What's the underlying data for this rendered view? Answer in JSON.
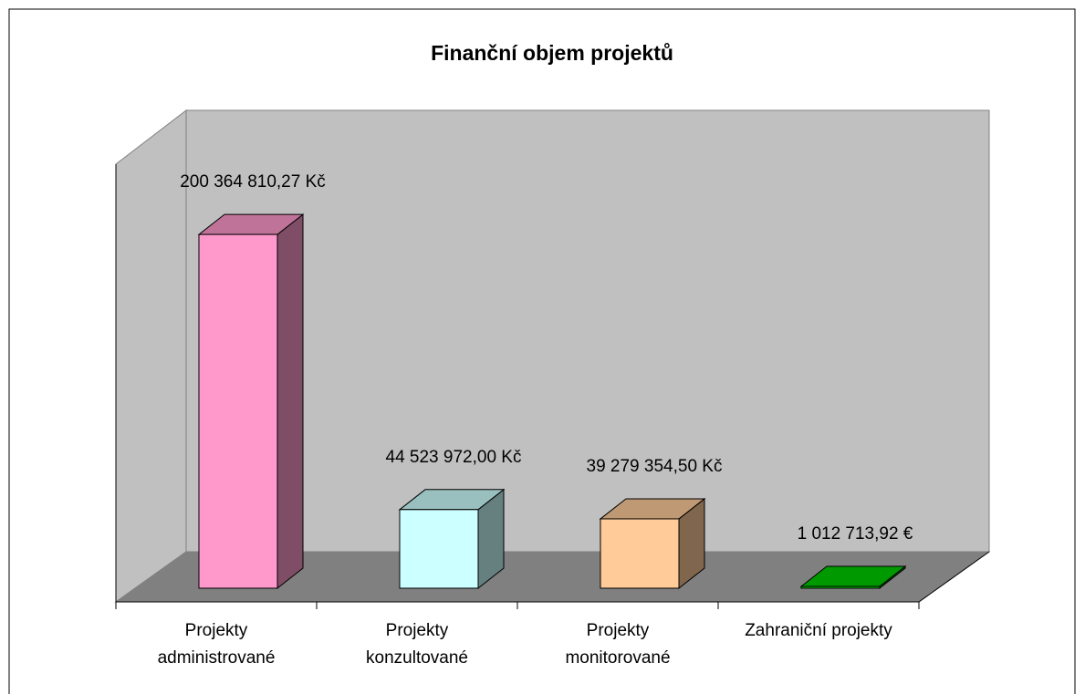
{
  "chart_data": {
    "type": "bar3d",
    "title": "Finanční objem projektů",
    "categories": [
      "Projekty administrované",
      "Projekty konzultované",
      "Projekty monitorované",
      "Zahraniční projekty"
    ],
    "values": [
      200364810.27,
      44523972.0,
      39279354.5,
      1012713.92
    ],
    "value_labels": [
      "200 364 810,27 Kč",
      "44 523 972,00 Kč",
      "39 279 354,50 Kč",
      "1 012 713,92 €"
    ],
    "colors": [
      "#ff99cc",
      "#ccffff",
      "#ffcc99",
      "#00cc00"
    ],
    "ylim": [
      0,
      250000000
    ]
  }
}
